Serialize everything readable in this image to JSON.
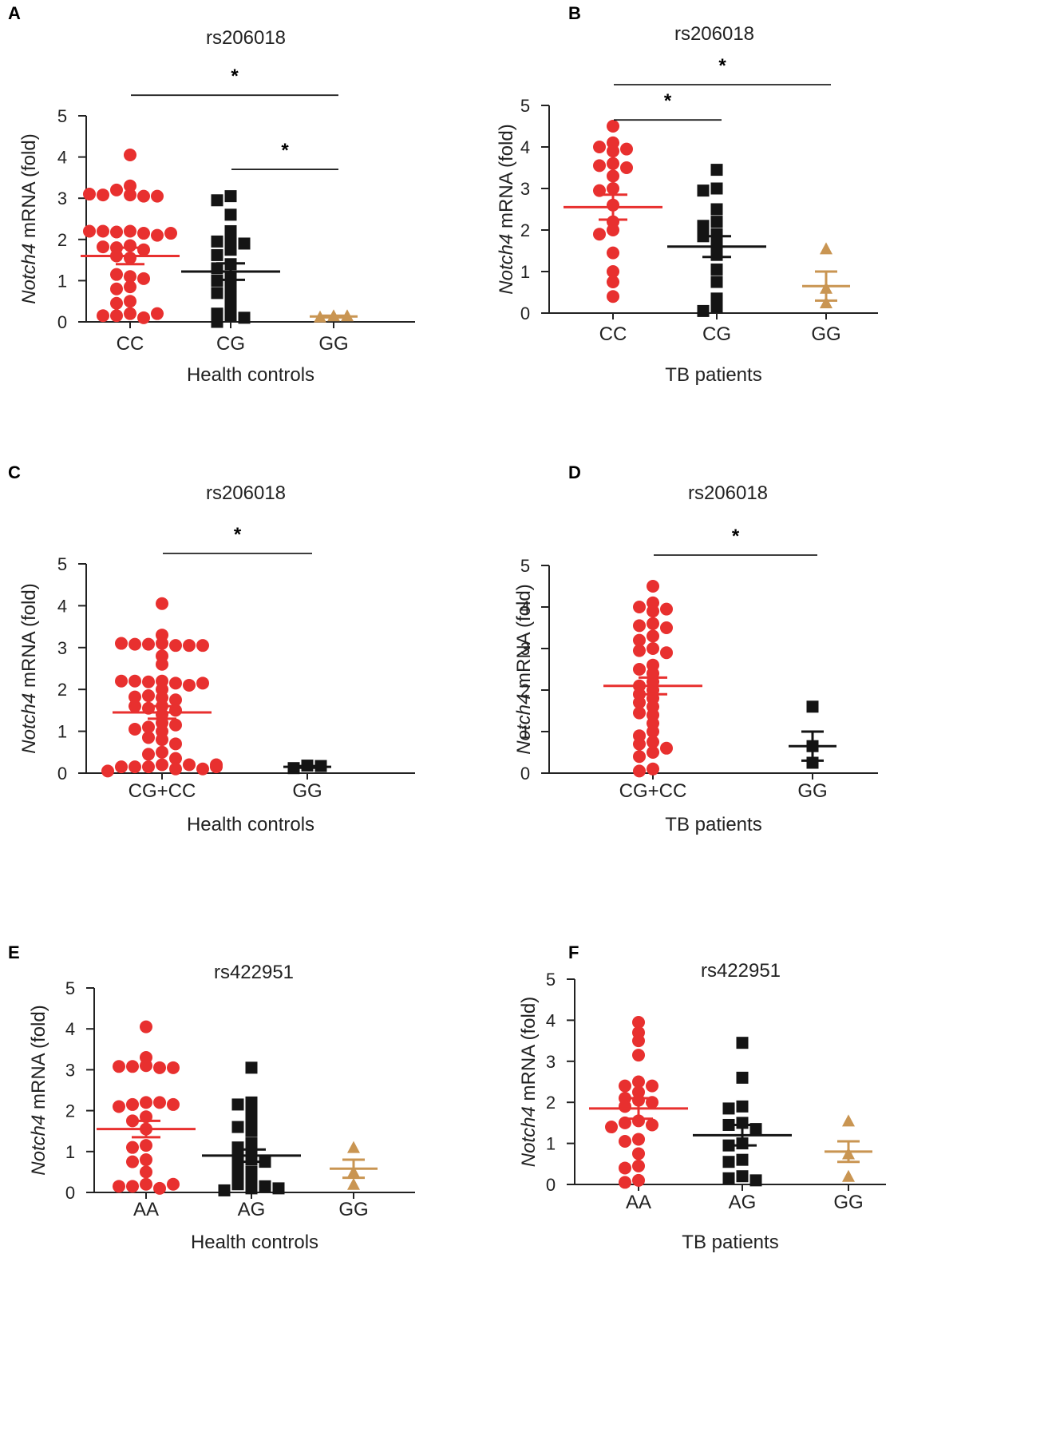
{
  "colors": {
    "red": "#e8302f",
    "black": "#141414",
    "tan": "#c99552"
  },
  "chart_data": [
    {
      "panel": "A",
      "type": "scatter",
      "title": "rs206018",
      "xlabel": "Health controls",
      "ylabel_italic": "Notch4",
      "ylabel_rest": " mRNA (fold)",
      "ylim": [
        0,
        5
      ],
      "yticks": [
        "0",
        "1",
        "2",
        "3",
        "4",
        "5"
      ],
      "series": [
        {
          "name": "CC",
          "marker": "circle",
          "color": "red",
          "mean": 1.6,
          "sem": 0.2,
          "values": [
            4.05,
            3.3,
            3.2,
            3.08,
            3.05,
            3.08,
            3.05,
            3.1,
            2.2,
            2.18,
            2.15,
            2.2,
            2.1,
            2.2,
            2.15,
            1.85,
            1.8,
            1.75,
            1.82,
            1.55,
            1.6,
            1.1,
            1.15,
            1.05,
            0.85,
            0.8,
            0.5,
            0.45,
            0.2,
            0.15,
            0.1,
            0.15,
            0.2
          ]
        },
        {
          "name": "CG",
          "marker": "square",
          "color": "black",
          "mean": 1.22,
          "sem": 0.2,
          "values": [
            3.05,
            2.95,
            2.6,
            2.2,
            2.0,
            1.95,
            1.9,
            1.75,
            1.62,
            1.4,
            1.3,
            1.1,
            1.0,
            0.85,
            0.7,
            0.6,
            0.35,
            0.2,
            0.15,
            0.1,
            0.0
          ]
        },
        {
          "name": "GG",
          "marker": "triangle",
          "color": "tan",
          "mean": 0.13,
          "sem": 0.02,
          "values": [
            0.15,
            0.12,
            0.15
          ]
        }
      ],
      "significance": [
        {
          "from": "CC",
          "to": "GG",
          "label": "*",
          "level": 5.5
        },
        {
          "from": "CG",
          "to": "GG",
          "label": "*",
          "level": 3.7
        }
      ]
    },
    {
      "panel": "B",
      "type": "scatter",
      "title": "rs206018",
      "xlabel": "TB patients",
      "ylabel_italic": "Notch4",
      "ylabel_rest": " mRNA (fold)",
      "ylim": [
        0,
        5
      ],
      "yticks": [
        "0",
        "1",
        "2",
        "3",
        "4",
        "5"
      ],
      "series": [
        {
          "name": "CC",
          "marker": "circle",
          "color": "red",
          "mean": 2.55,
          "sem": 0.3,
          "values": [
            4.5,
            4.1,
            4.0,
            3.95,
            3.9,
            3.6,
            3.55,
            3.5,
            3.3,
            3.0,
            2.95,
            2.6,
            2.2,
            2.0,
            1.9,
            1.45,
            1.0,
            0.75,
            0.4
          ]
        },
        {
          "name": "CG",
          "marker": "square",
          "color": "black",
          "mean": 1.6,
          "sem": 0.25,
          "values": [
            3.45,
            3.0,
            2.95,
            2.5,
            2.2,
            2.1,
            1.9,
            1.85,
            1.65,
            1.4,
            1.05,
            0.75,
            0.35,
            0.15,
            0.05
          ]
        },
        {
          "name": "GG",
          "marker": "triangle",
          "color": "tan",
          "mean": 0.65,
          "sem": 0.35,
          "values": [
            1.55,
            0.6,
            0.25
          ]
        }
      ],
      "significance": [
        {
          "from": "CC",
          "to": "GG",
          "label": "*",
          "level": 5.5
        },
        {
          "from": "CC",
          "to": "CG",
          "label": "*",
          "level": 4.65
        }
      ]
    },
    {
      "panel": "C",
      "type": "scatter",
      "title": "rs206018",
      "xlabel": "Health controls",
      "ylabel_italic": "Notch4",
      "ylabel_rest": " mRNA (fold)",
      "ylim": [
        0,
        5
      ],
      "yticks": [
        "0",
        "1",
        "2",
        "3",
        "4",
        "5"
      ],
      "series": [
        {
          "name": "CG+CC",
          "marker": "circle",
          "color": "red",
          "mean": 1.45,
          "sem": 0.15,
          "values": [
            4.05,
            3.3,
            3.1,
            3.08,
            3.05,
            3.08,
            3.05,
            3.1,
            3.05,
            2.8,
            2.6,
            2.2,
            2.18,
            2.15,
            2.2,
            2.1,
            2.2,
            2.15,
            2.0,
            1.85,
            1.8,
            1.75,
            1.82,
            1.6,
            1.55,
            1.6,
            1.5,
            1.4,
            1.2,
            1.1,
            1.15,
            1.05,
            1.0,
            0.85,
            0.8,
            0.7,
            0.5,
            0.45,
            0.35,
            0.2,
            0.15,
            0.1,
            0.15,
            0.2,
            0.15,
            0.1,
            0.05,
            0.15,
            0.2
          ]
        },
        {
          "name": "GG",
          "marker": "square",
          "color": "black",
          "mean": 0.15,
          "sem": 0.02,
          "values": [
            0.18,
            0.12,
            0.17
          ]
        }
      ],
      "significance": [
        {
          "from": "CG+CC",
          "to": "GG",
          "label": "*",
          "level": 5.25
        }
      ]
    },
    {
      "panel": "D",
      "type": "scatter",
      "title": "rs206018",
      "xlabel": "TB patients",
      "ylabel_italic": "Notch4",
      "ylabel_rest": " mRNA (fold)",
      "ylim": [
        0,
        5
      ],
      "yticks": [
        "0",
        "1",
        "2",
        "3",
        "4",
        "5"
      ],
      "series": [
        {
          "name": "CG+CC",
          "marker": "circle",
          "color": "red",
          "mean": 2.1,
          "sem": 0.2,
          "values": [
            4.5,
            4.1,
            4.0,
            3.95,
            3.9,
            3.6,
            3.55,
            3.5,
            3.3,
            3.0,
            2.95,
            2.9,
            2.6,
            2.4,
            2.2,
            2.1,
            2.0,
            1.9,
            1.8,
            1.6,
            1.45,
            1.4,
            1.2,
            1.0,
            0.9,
            0.75,
            0.7,
            0.5,
            0.4,
            0.1,
            0.05,
            0.6,
            1.7,
            2.5,
            3.2
          ]
        },
        {
          "name": "GG",
          "marker": "square",
          "color": "black",
          "mean": 0.65,
          "sem": 0.35,
          "values": [
            1.6,
            0.65,
            0.25
          ]
        }
      ],
      "significance": [
        {
          "from": "CG+CC",
          "to": "GG",
          "label": "*",
          "level": 5.25
        }
      ]
    },
    {
      "panel": "E",
      "type": "scatter",
      "title": "rs422951",
      "xlabel": "Health controls",
      "ylabel_italic": "Notch4",
      "ylabel_rest": " mRNA (fold)",
      "ylim": [
        0,
        5
      ],
      "yticks": [
        "0",
        "1",
        "2",
        "3",
        "4",
        "5"
      ],
      "series": [
        {
          "name": "AA",
          "marker": "circle",
          "color": "red",
          "mean": 1.55,
          "sem": 0.2,
          "values": [
            4.05,
            3.3,
            3.1,
            3.08,
            3.05,
            3.08,
            3.05,
            2.2,
            2.15,
            2.2,
            2.1,
            2.15,
            1.85,
            1.75,
            1.55,
            1.15,
            1.1,
            0.8,
            0.75,
            0.5,
            0.2,
            0.15,
            0.1,
            0.15,
            0.2
          ]
        },
        {
          "name": "AG",
          "marker": "square",
          "color": "black",
          "mean": 0.9,
          "sem": 0.15,
          "values": [
            3.05,
            2.2,
            2.15,
            2.0,
            1.75,
            1.6,
            1.5,
            1.2,
            1.1,
            1.0,
            0.9,
            0.8,
            0.75,
            0.7,
            0.5,
            0.45,
            0.3,
            0.2,
            0.15,
            0.1,
            0.05,
            0.1
          ]
        },
        {
          "name": "GG",
          "marker": "triangle",
          "color": "tan",
          "mean": 0.58,
          "sem": 0.22,
          "values": [
            1.1,
            0.5,
            0.2
          ]
        }
      ],
      "significance": []
    },
    {
      "panel": "F",
      "type": "scatter",
      "title": "rs422951",
      "xlabel": "TB patients",
      "ylabel_italic": "Notch4",
      "ylabel_rest": " mRNA (fold)",
      "ylim": [
        0,
        5
      ],
      "yticks": [
        "0",
        "1",
        "2",
        "3",
        "4",
        "5"
      ],
      "series": [
        {
          "name": "AA",
          "marker": "circle",
          "color": "red",
          "mean": 1.85,
          "sem": 0.25,
          "values": [
            3.95,
            3.7,
            3.5,
            3.15,
            2.5,
            2.4,
            2.4,
            2.25,
            2.1,
            2.05,
            2.0,
            1.9,
            1.55,
            1.5,
            1.45,
            1.4,
            1.1,
            1.05,
            0.75,
            0.45,
            0.4,
            0.1,
            0.05
          ]
        },
        {
          "name": "AG",
          "marker": "square",
          "color": "black",
          "mean": 1.2,
          "sem": 0.25,
          "values": [
            3.45,
            2.6,
            1.9,
            1.85,
            1.5,
            1.45,
            1.35,
            1.0,
            0.95,
            0.6,
            0.55,
            0.2,
            0.15,
            0.1
          ]
        },
        {
          "name": "GG",
          "marker": "triangle",
          "color": "tan",
          "mean": 0.8,
          "sem": 0.25,
          "values": [
            1.55,
            0.75,
            0.2
          ]
        }
      ],
      "significance": []
    }
  ]
}
